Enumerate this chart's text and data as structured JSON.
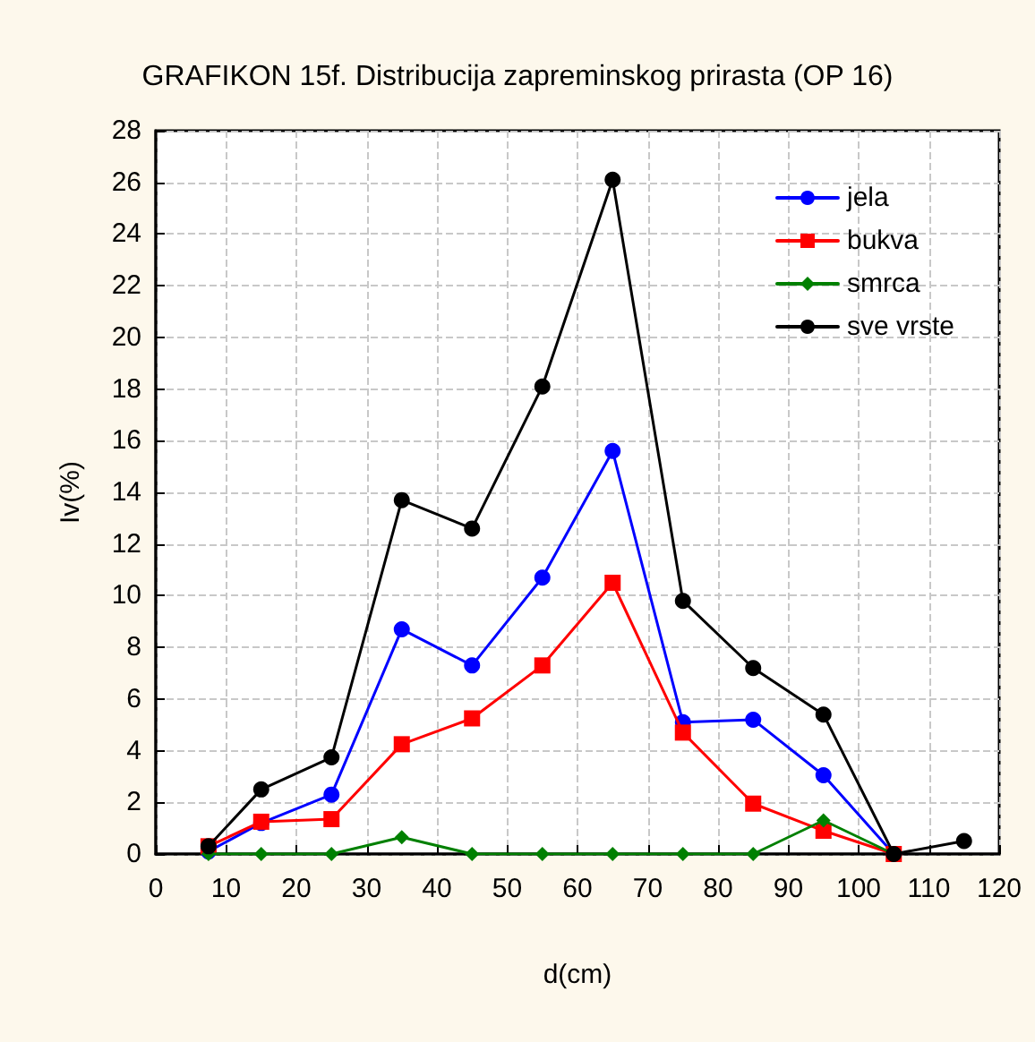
{
  "chart_data": {
    "type": "line",
    "title": "GRAFIKON 15f. Distribucija zapreminskog prirasta (OP 16)",
    "xlabel": "d(cm)",
    "ylabel": "Iv(%)",
    "x": [
      7.5,
      15,
      25,
      35,
      45,
      55,
      65,
      75,
      85,
      95,
      105,
      115
    ],
    "series": [
      {
        "name": "jela",
        "color": "#0000ff",
        "marker": "circle",
        "values": [
          0.1,
          1.2,
          2.3,
          8.7,
          7.3,
          10.7,
          15.6,
          5.1,
          5.2,
          3.05,
          0,
          null
        ]
      },
      {
        "name": "bukva",
        "color": "#ff0000",
        "marker": "square",
        "values": [
          0.3,
          1.25,
          1.35,
          4.25,
          5.25,
          7.3,
          10.5,
          4.7,
          1.95,
          0.9,
          0,
          null
        ]
      },
      {
        "name": "smrca",
        "color": "#008000",
        "marker": "diamond",
        "values": [
          0,
          0,
          0,
          0.65,
          0,
          0,
          0,
          0,
          0,
          1.3,
          0,
          null
        ]
      },
      {
        "name": "sve vrste",
        "color": "#000000",
        "marker": "circle",
        "values": [
          0.3,
          2.5,
          3.74,
          13.7,
          12.6,
          18.1,
          26.1,
          9.8,
          7.2,
          5.4,
          0,
          0.5
        ]
      }
    ],
    "xlim": [
      0,
      120
    ],
    "xticks": [
      0,
      10,
      20,
      30,
      40,
      50,
      60,
      70,
      80,
      90,
      100,
      110,
      120
    ],
    "ylim": [
      0,
      28
    ],
    "yticks": [
      0,
      2,
      4,
      6,
      8,
      10,
      12,
      14,
      16,
      18,
      20,
      22,
      24,
      26,
      28
    ],
    "grid": true,
    "legend": "top right",
    "line_style": "solid"
  }
}
